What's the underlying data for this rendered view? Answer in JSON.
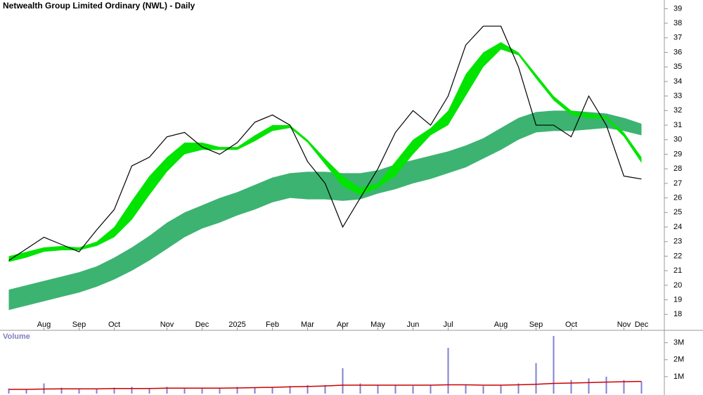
{
  "chart_data": [
    {
      "type": "line",
      "title": "Netwealth Group Limited Ordinary (NWL) - Daily",
      "categories": [
        null,
        null,
        "Aug",
        null,
        "Sep",
        null,
        "Oct",
        null,
        null,
        "Nov",
        null,
        "Dec",
        null,
        "2025",
        null,
        "Feb",
        null,
        "Mar",
        null,
        "Apr",
        null,
        "May",
        null,
        "Jun",
        null,
        "Jul",
        null,
        null,
        "Aug",
        null,
        "Sep",
        null,
        "Oct",
        null,
        null,
        "Nov",
        "Dec"
      ],
      "series": [
        {
          "color": "#000000",
          "values": [
            21.7,
            22.5,
            23.3,
            22.8,
            22.3,
            23.8,
            25.2,
            28.2,
            28.8,
            30.2,
            30.5,
            29.5,
            29.0,
            29.8,
            31.2,
            31.7,
            31.0,
            28.5,
            27.0,
            24.0,
            26.0,
            28.0,
            30.5,
            32.0,
            31.0,
            33.0,
            36.5,
            37.8,
            37.8,
            35.0,
            31.0,
            31.0,
            30.2,
            33.0,
            31.0,
            27.5,
            27.3
          ]
        }
      ],
      "bands": [
        {
          "color": "#3cb371",
          "upper": [
            19.7,
            20.0,
            20.3,
            20.6,
            20.9,
            21.3,
            21.9,
            22.6,
            23.4,
            24.3,
            25.0,
            25.5,
            26.0,
            26.4,
            26.9,
            27.4,
            27.7,
            27.8,
            27.8,
            27.7,
            27.7,
            27.9,
            28.3,
            28.6,
            28.9,
            29.2,
            29.6,
            30.1,
            30.8,
            31.5,
            31.9,
            32.0,
            32.0,
            31.9,
            31.8,
            31.5,
            31.1
          ],
          "lower": [
            18.3,
            18.6,
            18.9,
            19.2,
            19.5,
            19.9,
            20.4,
            21.0,
            21.7,
            22.5,
            23.3,
            23.9,
            24.3,
            24.8,
            25.2,
            25.7,
            26.0,
            25.9,
            25.9,
            25.8,
            25.9,
            26.3,
            26.6,
            27.0,
            27.3,
            27.7,
            28.1,
            28.7,
            29.3,
            30.0,
            30.5,
            30.6,
            30.6,
            30.7,
            30.8,
            30.6,
            30.3
          ]
        },
        {
          "color": "#00e400",
          "upper": [
            22.0,
            22.3,
            22.6,
            22.7,
            22.6,
            23.0,
            24.0,
            25.8,
            27.5,
            28.8,
            29.8,
            29.8,
            29.5,
            29.5,
            30.3,
            31.0,
            31.0,
            30.0,
            28.7,
            27.5,
            26.7,
            27.0,
            28.5,
            30.0,
            30.8,
            32.0,
            34.5,
            36.0,
            36.7,
            36.0,
            34.5,
            33.0,
            32.0,
            31.8,
            31.6,
            30.5,
            28.8
          ],
          "lower": [
            21.6,
            21.9,
            22.3,
            22.4,
            22.4,
            22.7,
            23.3,
            24.5,
            26.2,
            27.8,
            29.0,
            29.3,
            29.3,
            29.3,
            29.9,
            30.6,
            30.8,
            29.8,
            28.3,
            26.8,
            26.2,
            26.7,
            27.5,
            29.0,
            30.3,
            31.0,
            33.0,
            35.0,
            36.2,
            35.8,
            34.2,
            32.7,
            31.7,
            31.5,
            31.4,
            30.2,
            28.4
          ]
        }
      ],
      "ylim": [
        17,
        39.5
      ],
      "yticks": [
        18,
        19,
        20,
        21,
        22,
        23,
        24,
        25,
        26,
        27,
        28,
        29,
        30,
        31,
        32,
        33,
        34,
        35,
        36,
        37,
        38,
        39
      ]
    },
    {
      "type": "bar",
      "title": "Volume",
      "color": "#8080d0",
      "values": [
        300000,
        250000,
        600000,
        350000,
        300000,
        300000,
        350000,
        400000,
        300000,
        400000,
        350000,
        300000,
        300000,
        400000,
        350000,
        400000,
        450000,
        500000,
        500000,
        1500000,
        600000,
        500000,
        500000,
        450000,
        500000,
        2700000,
        500000,
        450000,
        500000,
        600000,
        1800000,
        3400000,
        800000,
        900000,
        1000000,
        800000,
        700000
      ],
      "average": {
        "color": "#cc0000",
        "values": [
          250000,
          250000,
          270000,
          280000,
          280000,
          280000,
          300000,
          300000,
          300000,
          320000,
          320000,
          320000,
          320000,
          330000,
          350000,
          370000,
          400000,
          420000,
          450000,
          500000,
          500000,
          500000,
          500000,
          500000,
          500000,
          520000,
          520000,
          500000,
          500000,
          520000,
          550000,
          600000,
          620000,
          650000,
          680000,
          700000,
          720000
        ]
      },
      "ylim": [
        0,
        3400000
      ],
      "yticks": [
        {
          "value": 1000000,
          "label": "1M"
        },
        {
          "value": 2000000,
          "label": "2M"
        },
        {
          "value": 3000000,
          "label": "3M"
        }
      ]
    }
  ]
}
